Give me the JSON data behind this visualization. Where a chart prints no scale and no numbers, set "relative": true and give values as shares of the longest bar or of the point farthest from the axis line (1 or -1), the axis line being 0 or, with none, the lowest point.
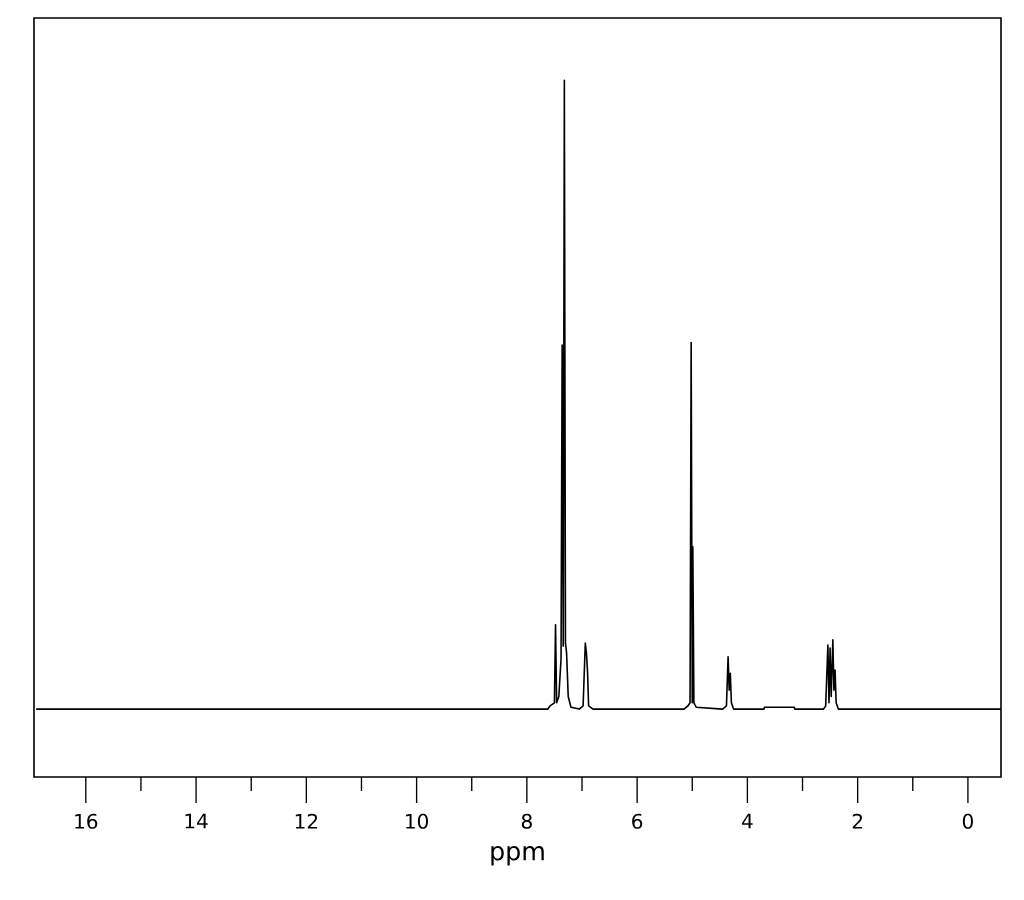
{
  "chart_data": {
    "type": "line",
    "xlabel": "ppm",
    "relative": true,
    "xlim": [
      16.94,
      -0.6
    ],
    "xticks": [
      16,
      14,
      12,
      10,
      8,
      6,
      4,
      2,
      0
    ],
    "x": [
      16.9,
      7.62,
      7.58,
      7.5,
      7.48,
      7.46,
      7.42,
      7.38,
      7.36,
      7.34,
      7.32,
      7.3,
      7.28,
      7.25,
      7.2,
      7.05,
      6.98,
      6.94,
      6.92,
      6.9,
      6.88,
      6.8,
      5.15,
      5.08,
      5.04,
      5.02,
      5.0,
      4.99,
      4.97,
      4.93,
      4.45,
      4.38,
      4.35,
      4.33,
      4.31,
      4.29,
      4.25,
      3.7,
      3.69,
      3.15,
      3.14,
      2.62,
      2.58,
      2.54,
      2.52,
      2.5,
      2.48,
      2.45,
      2.43,
      2.41,
      2.39,
      2.35,
      -0.6
    ],
    "series": [
      {
        "color": "#000000",
        "values": [
          0,
          0,
          0.005,
          0.01,
          0.134,
          0.01,
          0.02,
          0.08,
          0.579,
          0.1,
          1.0,
          0.105,
          0.09,
          0.02,
          0.003,
          0,
          0.005,
          0.105,
          0.09,
          0.06,
          0.005,
          0,
          0,
          0.005,
          0.01,
          0.583,
          0.01,
          0.258,
          0.01,
          0.003,
          0,
          0.005,
          0.083,
          0.03,
          0.057,
          0.01,
          0,
          0,
          0.003,
          0.003,
          0,
          0,
          0.005,
          0.102,
          0.01,
          0.097,
          0.02,
          0.11,
          0.03,
          0.062,
          0.01,
          0,
          0
        ]
      }
    ]
  }
}
